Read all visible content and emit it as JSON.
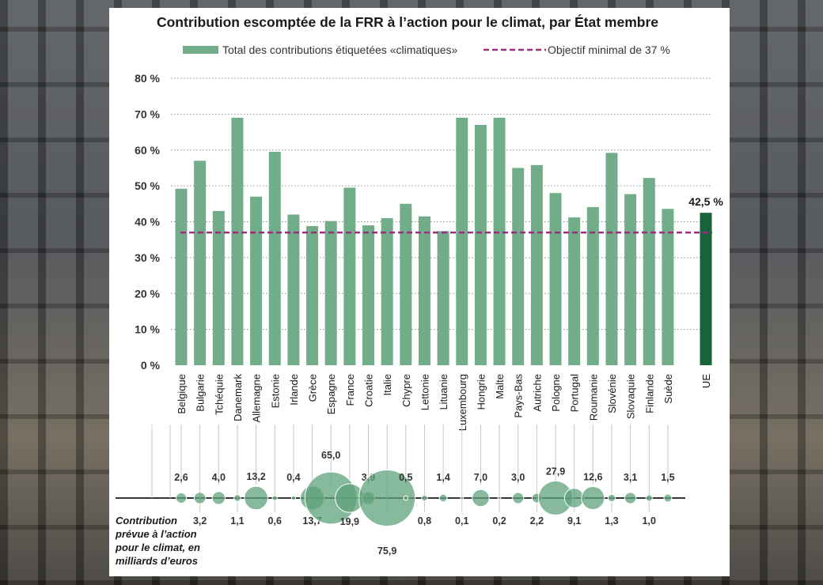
{
  "chart_data": {
    "type": "bar",
    "title": "Contribution escomptée de la FRR à l’action pour le climat, par  État membre",
    "legend": {
      "bar_label": "Total des contributions étiquetées «climatiques»",
      "line_label": "Objectif minimal de 37 %",
      "placement": "top"
    },
    "y_ticks": [
      "0 %",
      "10 %",
      "20 %",
      "30 %",
      "40 %",
      "50 %",
      "60 %",
      "70 %",
      "80 %"
    ],
    "ylim": [
      0,
      80
    ],
    "grid": true,
    "categories": [
      "Belgique",
      "Bulgarie",
      "Tchéquie",
      "Danemark",
      "Allemagne",
      "Estonie",
      "Irlande",
      "Grèce",
      "Espagne",
      "France",
      "Croatie",
      "Italie",
      "Chypre",
      "Lettonie",
      "Lituanie",
      "Luxembourg",
      "Hongrie",
      "Malte",
      "Pays-Bas",
      "Autriche",
      "Pologne",
      "Portugal",
      "Roumanie",
      "Slovénie",
      "Slovaquie",
      "Finlande",
      "Suède"
    ],
    "values": [
      49.2,
      57.0,
      43.0,
      69.0,
      47.0,
      59.5,
      42.0,
      38.8,
      40.2,
      49.5,
      39.0,
      41.0,
      45.0,
      41.5,
      37.4,
      69.0,
      67.0,
      69.0,
      55.0,
      55.8,
      48.0,
      41.2,
      44.1,
      59.2,
      47.7,
      52.2,
      43.6
    ],
    "eu": {
      "category": "UE",
      "value": 42.5,
      "label": "42,5 %"
    },
    "target": 37,
    "bubbles": {
      "caption": [
        "Contribution",
        "prévue à l’action",
        "pour le climat, en",
        "milliards d’euros"
      ],
      "values": [
        2.6,
        3.2,
        4.0,
        1.1,
        13.2,
        0.6,
        0.4,
        13.7,
        65.0,
        19.9,
        3.9,
        75.9,
        0.5,
        0.8,
        1.4,
        0.1,
        7.0,
        0.2,
        3.0,
        2.2,
        27.9,
        9.1,
        12.6,
        1.3,
        3.1,
        1.0,
        1.5
      ],
      "labels": [
        "2,6",
        "3,2",
        "4,0",
        "1,1",
        "13,2",
        "0,6",
        "0,4",
        "13,7",
        "65,0",
        "19,9",
        "3,9",
        "75,9",
        "0,5",
        "0,8",
        "1,4",
        "0,1",
        "7,0",
        "0,2",
        "3,0",
        "2,2",
        "27,9",
        "9,1",
        "12,6",
        "1,3",
        "3,1",
        "1,0",
        "1,5"
      ]
    },
    "colors": {
      "bar": "#72ad89",
      "eu_bar": "#17643a",
      "target_line": "#9b2d83",
      "grid": "#8c8c8c",
      "bubble": "#5fa27b"
    }
  }
}
